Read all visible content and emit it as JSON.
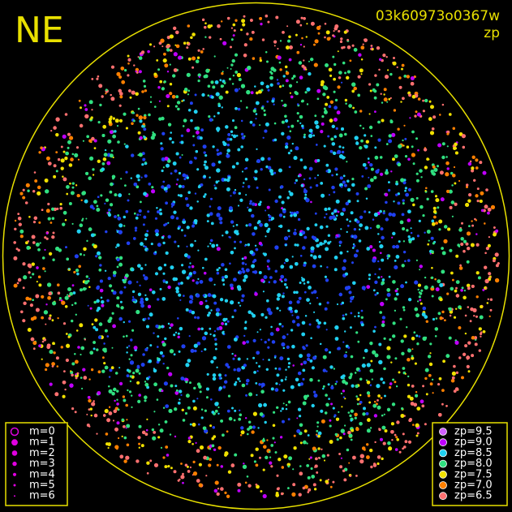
{
  "header": {
    "title": "NE",
    "image_id": "03k60973o0367w",
    "mode": "zp"
  },
  "magnitude_legend": {
    "items": [
      {
        "label": "m=0"
      },
      {
        "label": "m=1"
      },
      {
        "label": "m=2"
      },
      {
        "label": "m=3"
      },
      {
        "label": "m=4"
      },
      {
        "label": "m=5"
      },
      {
        "label": "m=6"
      }
    ],
    "color": "#e000e0"
  },
  "zp_legend": {
    "items": [
      {
        "label": "zp=9.5",
        "color": "#d060ff"
      },
      {
        "label": "zp=9.0",
        "color": "#c000ff"
      },
      {
        "label": "zp=8.5",
        "color": "#20d0f0"
      },
      {
        "label": "zp=8.0",
        "color": "#30e080"
      },
      {
        "label": "zp=7.5",
        "color": "#f0e000"
      },
      {
        "label": "zp=7.0",
        "color": "#ff8000"
      },
      {
        "label": "zp=6.5",
        "color": "#ff7070"
      }
    ]
  }
}
